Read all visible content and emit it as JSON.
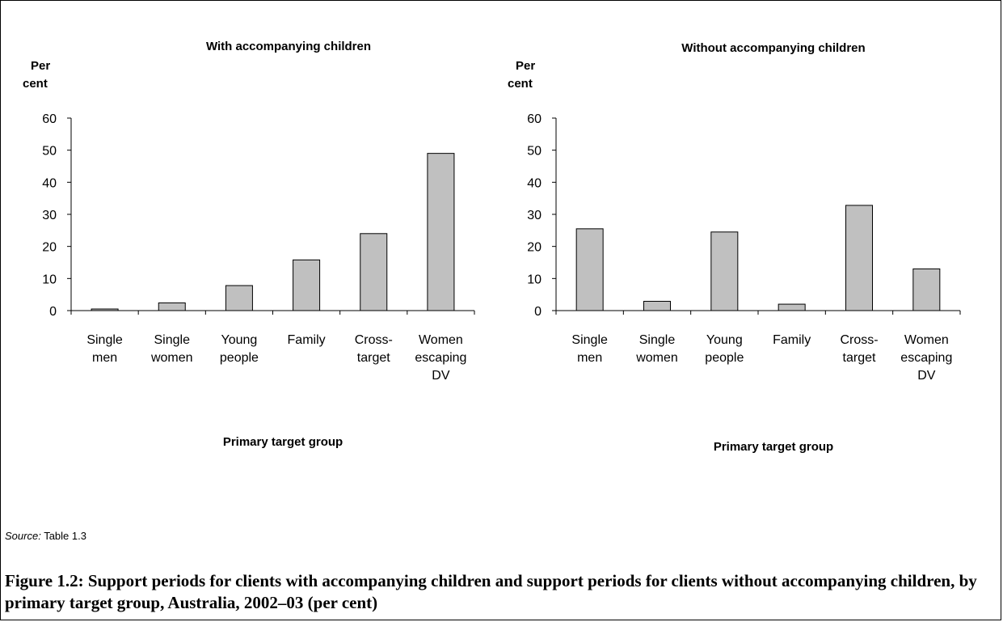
{
  "chart_data": [
    {
      "type": "bar",
      "title": "With accompanying children",
      "ylabel_line1": "Per",
      "ylabel_line2": "cent",
      "xlabel": "Primary target group",
      "ylim": [
        0,
        60
      ],
      "yticks": [
        0,
        10,
        20,
        30,
        40,
        50,
        60
      ],
      "categories": [
        [
          "Single",
          "men"
        ],
        [
          "Single",
          "women"
        ],
        [
          "Young",
          "people"
        ],
        [
          "Family"
        ],
        [
          "Cross-",
          "target"
        ],
        [
          "Women",
          "escaping",
          "DV"
        ]
      ],
      "values": [
        0.5,
        2.4,
        7.8,
        15.8,
        24.0,
        49.0
      ],
      "bar_color": "#c0c0c0"
    },
    {
      "type": "bar",
      "title": "Without accompanying children",
      "ylabel_line1": "Per",
      "ylabel_line2": "cent",
      "xlabel": "Primary target group",
      "ylim": [
        0,
        60
      ],
      "yticks": [
        0,
        10,
        20,
        30,
        40,
        50,
        60
      ],
      "categories": [
        [
          "Single",
          "men"
        ],
        [
          "Single",
          "women"
        ],
        [
          "Young",
          "people"
        ],
        [
          "Family"
        ],
        [
          "Cross-",
          "target"
        ],
        [
          "Women",
          "escaping",
          "DV"
        ]
      ],
      "values": [
        25.5,
        2.9,
        24.5,
        2.0,
        32.8,
        13.0
      ],
      "bar_color": "#c0c0c0"
    }
  ],
  "source": {
    "label": "Source:",
    "text": " Table 1.3"
  },
  "caption": "Figure 1.2: Support periods for clients with accompanying children and support periods for clients without accompanying children, by primary target group, Australia, 2002–03 (per cent)"
}
